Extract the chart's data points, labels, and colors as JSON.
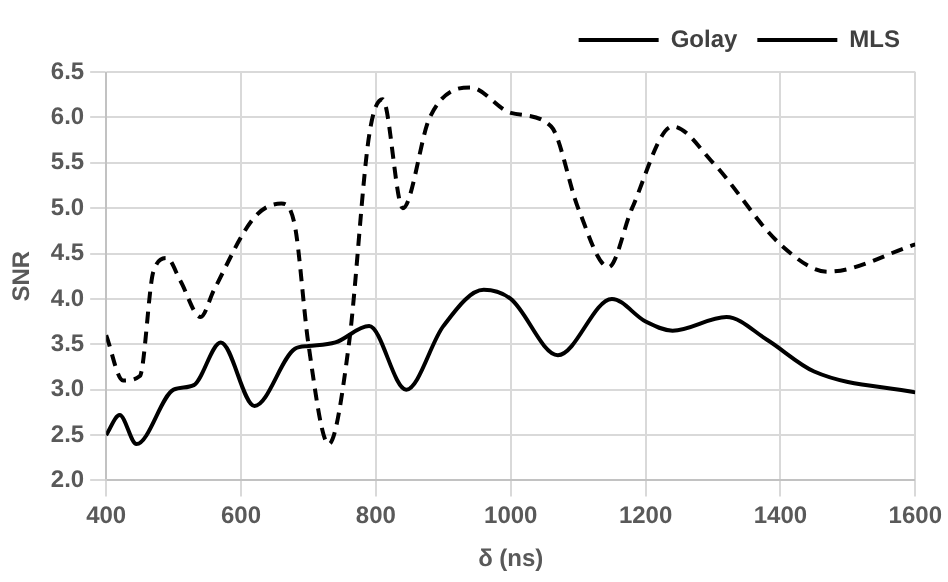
{
  "chart_data": {
    "type": "line",
    "xlabel": "δ (ns)",
    "ylabel": "SNR",
    "xlim": [
      400,
      1600
    ],
    "xticks": [
      400,
      600,
      800,
      1000,
      1200,
      1400,
      1600
    ],
    "ylim": [
      2.0,
      6.5
    ],
    "yticks": [
      {
        "value": 2,
        "label": "2.0"
      },
      {
        "value": 2.5,
        "label": "2.5"
      },
      {
        "value": 3,
        "label": "3.0"
      },
      {
        "value": 3.5,
        "label": "3.5"
      },
      {
        "value": 4,
        "label": "4.0"
      },
      {
        "value": 4.5,
        "label": "4.5"
      },
      {
        "value": 5,
        "label": "5.0"
      },
      {
        "value": 5.5,
        "label": "5.5"
      },
      {
        "value": 6,
        "label": "6.0"
      },
      {
        "value": 6.5,
        "label": "6.5"
      }
    ],
    "grid": true,
    "legend": "top right",
    "marker": "none",
    "series": [
      {
        "name": "Golay",
        "color": "#000000",
        "line_style": "solid",
        "x": [
          400,
          420,
          445,
          500,
          530,
          570,
          620,
          680,
          700,
          740,
          790,
          845,
          900,
          960,
          1000,
          1070,
          1150,
          1200,
          1240,
          1320,
          1380,
          1450,
          1600
        ],
        "values": [
          2.5,
          2.72,
          2.4,
          3.0,
          3.05,
          3.52,
          2.82,
          3.45,
          3.48,
          3.52,
          3.7,
          3.0,
          3.7,
          4.1,
          4.0,
          3.38,
          4.0,
          3.75,
          3.65,
          3.8,
          3.55,
          3.2,
          2.97
        ]
      },
      {
        "name": "MLS",
        "color": "#000000",
        "line_style": "dashed",
        "x": [
          400,
          425,
          450,
          470,
          490,
          510,
          540,
          560,
          620,
          660,
          680,
          700,
          730,
          760,
          790,
          810,
          840,
          880,
          940,
          1000,
          1060,
          1100,
          1145,
          1180,
          1240,
          1300,
          1400,
          1470,
          1600
        ],
        "values": [
          3.6,
          3.1,
          3.15,
          4.3,
          4.45,
          4.2,
          3.8,
          4.1,
          4.9,
          5.05,
          4.8,
          3.5,
          2.4,
          3.5,
          5.8,
          6.2,
          5.0,
          6.0,
          6.33,
          6.05,
          5.9,
          5.0,
          4.35,
          5.0,
          5.9,
          5.5,
          4.6,
          4.3,
          4.6
        ]
      }
    ]
  }
}
